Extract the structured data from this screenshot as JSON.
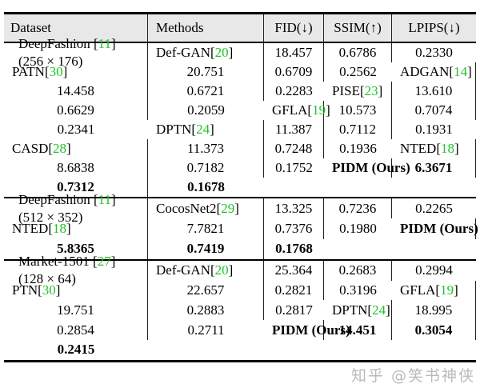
{
  "colors": {
    "citation_green": "#1fc327",
    "header_background": "#e8e8e8",
    "rule_black": "#000000"
  },
  "watermark": {
    "text": "知乎 @笑书神侠"
  },
  "table": {
    "header": {
      "dataset": "Dataset",
      "methods": "Methods",
      "fid": "FID(↓)",
      "ssim": "SSIM(↑)",
      "lpips": "LPIPS(↓)"
    },
    "groups": [
      {
        "dataset": {
          "name": "DeepFashion",
          "cite": "11",
          "size": "(256 × 176)"
        },
        "rows": [
          {
            "method": "Def-GAN",
            "cite": "20",
            "fid": "18.457",
            "ssim": "0.6786",
            "lpips": "0.2330",
            "bold": false
          },
          {
            "method": "PATN",
            "cite": "30",
            "fid": "20.751",
            "ssim": "0.6709",
            "lpips": "0.2562",
            "bold": false
          },
          {
            "method": "ADGAN",
            "cite": "14",
            "fid": "14.458",
            "ssim": "0.6721",
            "lpips": "0.2283",
            "bold": false
          },
          {
            "method": "PISE",
            "cite": "23",
            "fid": "13.610",
            "ssim": "0.6629",
            "lpips": "0.2059",
            "bold": false
          },
          {
            "method": "GFLA",
            "cite": "19",
            "fid": "10.573",
            "ssim": "0.7074",
            "lpips": "0.2341",
            "bold": false
          },
          {
            "method": "DPTN",
            "cite": "24",
            "fid": "11.387",
            "ssim": "0.7112",
            "lpips": "0.1931",
            "bold": false
          },
          {
            "method": "CASD",
            "cite": "28",
            "fid": "11.373",
            "ssim": "0.7248",
            "lpips": "0.1936",
            "bold": false
          },
          {
            "method": "NTED",
            "cite": "18",
            "fid": "8.6838",
            "ssim": "0.7182",
            "lpips": "0.1752",
            "bold": false
          },
          {
            "method": "PIDM (Ours)",
            "cite": null,
            "fid": "6.3671",
            "ssim": "0.7312",
            "lpips": "0.1678",
            "bold": true
          }
        ]
      },
      {
        "dataset": {
          "name": "DeepFashion",
          "cite": "11",
          "size": "(512 × 352)"
        },
        "rows": [
          {
            "method": "CocosNet2",
            "cite": "29",
            "fid": "13.325",
            "ssim": "0.7236",
            "lpips": "0.2265",
            "bold": false
          },
          {
            "method": "NTED",
            "cite": "18",
            "fid": "7.7821",
            "ssim": "0.7376",
            "lpips": "0.1980",
            "bold": false
          },
          {
            "method": "PIDM (Ours)",
            "cite": null,
            "fid": "5.8365",
            "ssim": "0.7419",
            "lpips": "0.1768",
            "bold": true
          }
        ]
      },
      {
        "dataset": {
          "name": "Market-1501",
          "cite": "27",
          "size": "(128 × 64)"
        },
        "rows": [
          {
            "method": "Def-GAN",
            "cite": "20",
            "fid": "25.364",
            "ssim": "0.2683",
            "lpips": "0.2994",
            "bold": false
          },
          {
            "method": "PTN",
            "cite": "30",
            "fid": "22.657",
            "ssim": "0.2821",
            "lpips": "0.3196",
            "bold": false
          },
          {
            "method": "GFLA",
            "cite": "19",
            "fid": "19.751",
            "ssim": "0.2883",
            "lpips": "0.2817",
            "bold": false
          },
          {
            "method": "DPTN",
            "cite": "24",
            "fid": "18.995",
            "ssim": "0.2854",
            "lpips": "0.2711",
            "bold": false
          },
          {
            "method": "PIDM (Ours)",
            "cite": null,
            "fid": "14.451",
            "ssim": "0.3054",
            "lpips": "0.2415",
            "bold": true
          }
        ]
      }
    ]
  }
}
